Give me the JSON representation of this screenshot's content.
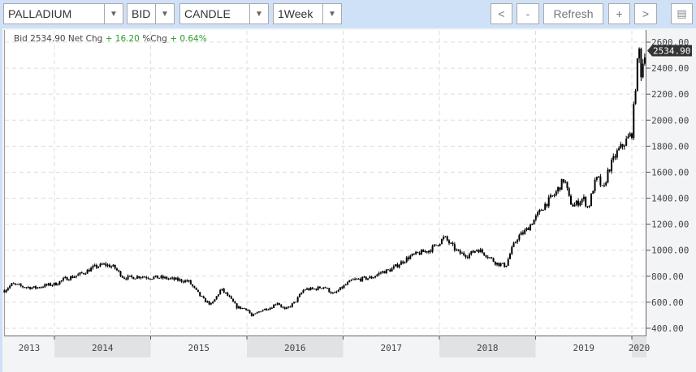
{
  "toolbar": {
    "symbol": "PALLADIUM",
    "price_type": "BID",
    "chart_type": "CANDLE",
    "interval": "1Week",
    "prev_label": "<",
    "zoom_out_label": "-",
    "refresh_label": "Refresh",
    "zoom_in_label": "+",
    "next_label": ">",
    "menu_icon": "table-icon"
  },
  "info": {
    "bid_label": "Bid",
    "bid": "2534.90",
    "net_chg_label": "Net Chg",
    "net_chg": "+ 16.20",
    "pct_chg_label": "%Chg",
    "pct_chg": "+ 0.64%"
  },
  "chart_data": {
    "type": "candlestick",
    "y_ticks": [
      "2600.00",
      "2400.00",
      "2200.00",
      "2000.00",
      "1800.00",
      "1600.00",
      "1400.00",
      "1200.00",
      "1000.00",
      "800.00",
      "600.00",
      "400.00"
    ],
    "ylim": [
      400,
      2600
    ],
    "x_ticks": [
      "2013",
      "2014",
      "2015",
      "2016",
      "2017",
      "2018",
      "2019",
      "2020"
    ],
    "last_price_label": "2534.90",
    "grid": true,
    "colors": {
      "candle": "#000000",
      "up": "#2a9d2a",
      "last_label_bg": "#333333"
    },
    "closes": [
      [
        "2013-06-25",
        690
      ],
      [
        "2013-07-25",
        740
      ],
      [
        "2013-09-01",
        720
      ],
      [
        "2013-10-20",
        710
      ],
      [
        "2013-12-01",
        730
      ],
      [
        "2014-01-05",
        740
      ],
      [
        "2014-02-10",
        780
      ],
      [
        "2014-03-20",
        800
      ],
      [
        "2014-04-25",
        830
      ],
      [
        "2014-06-01",
        870
      ],
      [
        "2014-07-10",
        890
      ],
      [
        "2014-08-15",
        870
      ],
      [
        "2014-09-20",
        790
      ],
      [
        "2014-10-20",
        790
      ],
      [
        "2014-11-25",
        800
      ],
      [
        "2015-01-01",
        790
      ],
      [
        "2015-02-05",
        790
      ],
      [
        "2015-03-15",
        780
      ],
      [
        "2015-04-20",
        770
      ],
      [
        "2015-05-25",
        760
      ],
      [
        "2015-06-25",
        680
      ],
      [
        "2015-07-20",
        620
      ],
      [
        "2015-08-20",
        580
      ],
      [
        "2015-09-25",
        700
      ],
      [
        "2015-10-25",
        640
      ],
      [
        "2015-11-25",
        560
      ],
      [
        "2016-01-01",
        550
      ],
      [
        "2016-01-20",
        490
      ],
      [
        "2016-02-25",
        540
      ],
      [
        "2016-04-01",
        560
      ],
      [
        "2016-04-25",
        600
      ],
      [
        "2016-05-25",
        540
      ],
      [
        "2016-07-01",
        600
      ],
      [
        "2016-08-05",
        700
      ],
      [
        "2016-09-10",
        700
      ],
      [
        "2016-10-20",
        720
      ],
      [
        "2016-11-25",
        660
      ],
      [
        "2017-01-01",
        720
      ],
      [
        "2017-02-05",
        770
      ],
      [
        "2017-03-15",
        780
      ],
      [
        "2017-04-20",
        790
      ],
      [
        "2017-05-25",
        830
      ],
      [
        "2017-07-01",
        850
      ],
      [
        "2017-08-05",
        900
      ],
      [
        "2017-09-10",
        950
      ],
      [
        "2017-10-20",
        980
      ],
      [
        "2017-11-25",
        1000
      ],
      [
        "2018-01-01",
        1060
      ],
      [
        "2018-01-20",
        1100
      ],
      [
        "2018-02-10",
        1050
      ],
      [
        "2018-03-15",
        980
      ],
      [
        "2018-04-20",
        960
      ],
      [
        "2018-05-25",
        1010
      ],
      [
        "2018-07-01",
        960
      ],
      [
        "2018-08-05",
        900
      ],
      [
        "2018-09-10",
        880
      ],
      [
        "2018-10-01",
        1000
      ],
      [
        "2018-10-25",
        1100
      ],
      [
        "2018-11-25",
        1150
      ],
      [
        "2019-01-01",
        1250
      ],
      [
        "2019-02-05",
        1350
      ],
      [
        "2019-03-15",
        1430
      ],
      [
        "2019-04-20",
        1550
      ],
      [
        "2019-05-10",
        1380
      ],
      [
        "2019-05-25",
        1340
      ],
      [
        "2019-07-01",
        1400
      ],
      [
        "2019-07-20",
        1320
      ],
      [
        "2019-08-10",
        1500
      ],
      [
        "2019-08-25",
        1560
      ],
      [
        "2019-09-15",
        1450
      ],
      [
        "2019-10-01",
        1600
      ],
      [
        "2019-11-05",
        1750
      ],
      [
        "2019-11-25",
        1800
      ],
      [
        "2020-01-01",
        1900
      ],
      [
        "2020-01-20",
        2400
      ],
      [
        "2020-01-30",
        2550
      ],
      [
        "2020-02-07",
        2300
      ],
      [
        "2020-02-14",
        2500
      ],
      [
        "2020-02-20",
        2534.9
      ]
    ]
  }
}
